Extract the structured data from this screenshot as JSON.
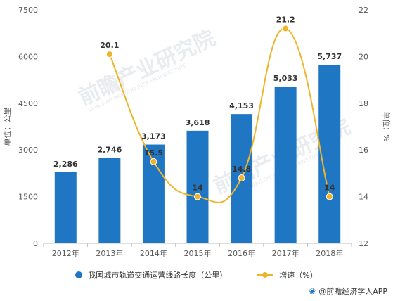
{
  "chart_data": {
    "type": "bar",
    "categories": [
      "2012年",
      "2013年",
      "2014年",
      "2015年",
      "2016年",
      "2017年",
      "2018年"
    ],
    "series": [
      {
        "name": "我国城市轨道交通运营线路长度（公里）",
        "type": "bar",
        "axis": "left",
        "values": [
          2286,
          2746,
          3173,
          3618,
          4153,
          5033,
          5737
        ],
        "labels": [
          "2,286",
          "2,746",
          "3,173",
          "3,618",
          "4,153",
          "5,033",
          "5,737"
        ],
        "color": "#1f77c4"
      },
      {
        "name": "增速（%）",
        "type": "line",
        "axis": "right",
        "values": [
          null,
          20.1,
          15.5,
          14,
          14.8,
          21.2,
          14
        ],
        "labels": [
          "",
          "20.1",
          "15.5",
          "14",
          "14.8",
          "21.2",
          "14"
        ],
        "color": "#f0b42a"
      }
    ],
    "y_left": {
      "label": "单位：公里",
      "ticks": [
        "0",
        "1500",
        "3000",
        "4500",
        "6000",
        "7500"
      ],
      "lim": [
        0,
        7500
      ]
    },
    "y_right": {
      "label": "单位：%",
      "ticks": [
        "12",
        "14",
        "16",
        "18",
        "20",
        "22"
      ],
      "lim": [
        12,
        22
      ]
    },
    "grid": false,
    "legend_position": "bottom"
  },
  "watermark": {
    "text": "前瞻产业研究院",
    "subtext": "QIANZHAN INDUSTRY RESEARCH INSTITUTE"
  },
  "source": {
    "icon": "paw-icon",
    "text": "@前瞻经济学人APP"
  }
}
